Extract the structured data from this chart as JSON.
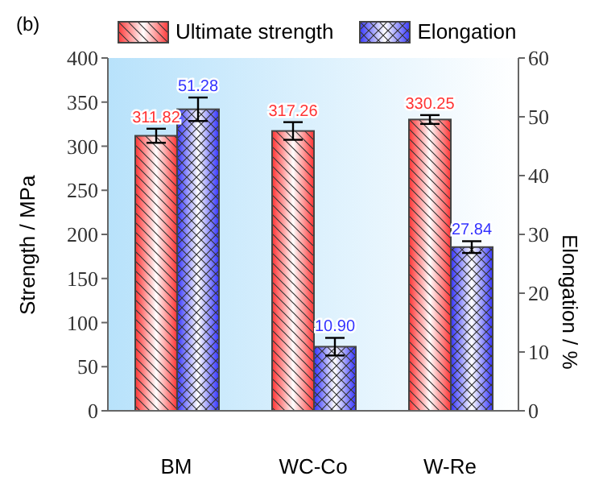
{
  "chart_data": {
    "type": "bar",
    "annotations": [
      "(b)"
    ],
    "ylabel": "Strength / MPa",
    "y2label": "Elongation / %",
    "categories": [
      "BM",
      "WC-Co",
      "W-Re"
    ],
    "series": [
      {
        "name": "Ultimate strength",
        "color": "#ff3333",
        "values": [
          311.82,
          317.26,
          330.25
        ],
        "errors": [
          8,
          10,
          5
        ],
        "value_labels": [
          "311.82",
          "317.26",
          "330.25"
        ]
      },
      {
        "name": "Elongation",
        "color": "#3333ff",
        "values": [
          51.28,
          10.9,
          27.84
        ],
        "errors": [
          2,
          1.5,
          1
        ],
        "axis": "y2",
        "value_labels": [
          "51.28",
          "10.90",
          "27.84"
        ]
      }
    ],
    "legend": "top",
    "ylim": [
      0,
      400
    ],
    "yticks": [
      0,
      50,
      100,
      150,
      200,
      250,
      300,
      350,
      400
    ],
    "y2lim": [
      0,
      60
    ],
    "y2ticks": [
      0,
      10,
      20,
      30,
      40,
      50,
      60
    ]
  }
}
